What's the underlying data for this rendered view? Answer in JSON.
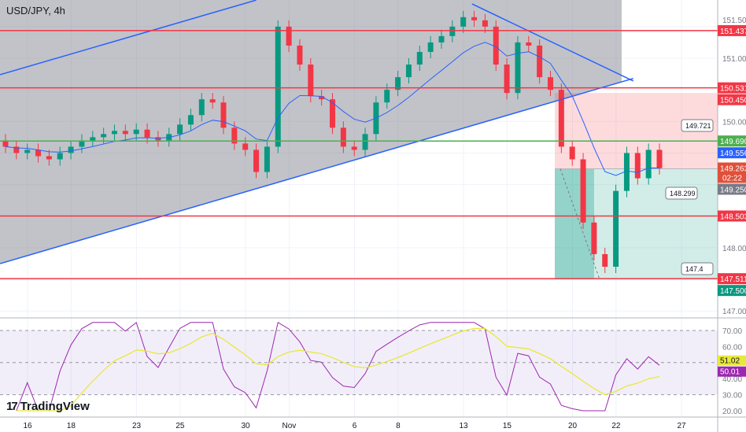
{
  "chart_data": {
    "type": "candlestick",
    "title": "USD/JPY, 4h",
    "x_tick_labels": [
      [
        "16",
        1
      ],
      [
        "18",
        3
      ],
      [
        "23",
        6
      ],
      [
        "25",
        8
      ],
      [
        "30",
        11
      ],
      [
        "Nov",
        13
      ],
      [
        "6",
        16
      ],
      [
        "8",
        18
      ],
      [
        "13",
        21
      ],
      [
        "15",
        23
      ],
      [
        "20",
        26
      ],
      [
        "22",
        28
      ],
      [
        "27",
        31
      ]
    ],
    "closes": [
      149.6,
      149.5,
      149.55,
      149.45,
      149.4,
      149.5,
      149.6,
      149.7,
      149.75,
      149.8,
      149.85,
      149.8,
      149.87,
      149.75,
      149.7,
      149.8,
      149.95,
      150.1,
      150.35,
      150.3,
      149.9,
      149.65,
      149.55,
      149.2,
      149.6,
      151.5,
      151.2,
      150.9,
      150.4,
      150.35,
      149.9,
      149.6,
      149.55,
      149.8,
      150.3,
      150.5,
      150.7,
      150.9,
      151.1,
      151.25,
      151.35,
      151.5,
      151.65,
      151.6,
      151.5,
      150.9,
      150.45,
      151.25,
      151.2,
      150.7,
      150.5,
      149.6,
      149.4,
      148.4,
      147.9,
      147.7,
      148.9,
      149.5,
      149.1,
      149.55,
      149.26
    ],
    "first_open": 149.7,
    "price_axis": {
      "ticks": [
        "151.500",
        "151.000",
        "150.000",
        "148.000",
        "147.000"
      ],
      "range": [
        146.8,
        151.95
      ]
    },
    "horizontal_levels": [
      {
        "price": 151.437,
        "label": "151.437",
        "color": "#f23645"
      },
      {
        "price": 150.531,
        "label": "150.531",
        "color": "#f23645"
      },
      {
        "price": 148.503,
        "label": "148.503",
        "color": "#f23645"
      },
      {
        "price": 147.511,
        "label": "147.511",
        "color": "#f23645"
      },
      {
        "price": 149.69,
        "label": "149.690",
        "color": "#4caf50"
      }
    ],
    "price_badges": [
      {
        "price": 150.45,
        "label": "150.450",
        "color": "#f23645"
      },
      {
        "price": 149.556,
        "label": "149.556",
        "color": "#2962ff"
      },
      {
        "price": 149.263,
        "label": "149.263",
        "sub": "02:22",
        "color": "#e0503a"
      },
      {
        "price": 149.25,
        "label": "149.250",
        "color": "#787b86"
      },
      {
        "price": 147.5,
        "label": "147.500",
        "color": "#089981"
      }
    ],
    "position": {
      "entry": 149.25,
      "stop": 150.45,
      "target": 147.5,
      "labels": [
        "149.721",
        "148.299",
        "147.4"
      ]
    },
    "trendlines": [
      {
        "from": [
          -0.5,
          150.74
        ],
        "to": [
          23,
          151.92
        ],
        "color": "#2962ff"
      },
      {
        "from": [
          -0.5,
          147.75
        ],
        "to": [
          57.6,
          150.68
        ],
        "color": "#2962ff"
      },
      {
        "from": [
          42.8,
          151.86
        ],
        "to": [
          57.6,
          150.64
        ],
        "color": "#2962ff"
      }
    ],
    "ma_color": "#2962ff",
    "rsi": {
      "ticks": [
        "70.00",
        "60.00",
        "40.00",
        "30.00",
        "20.00"
      ],
      "value": "51.02",
      "ma": "50.01",
      "rsi_color": "#9c27b0",
      "ma_color": "#e8e83a",
      "bands": [
        70,
        30
      ]
    }
  },
  "brand": "TradingView"
}
